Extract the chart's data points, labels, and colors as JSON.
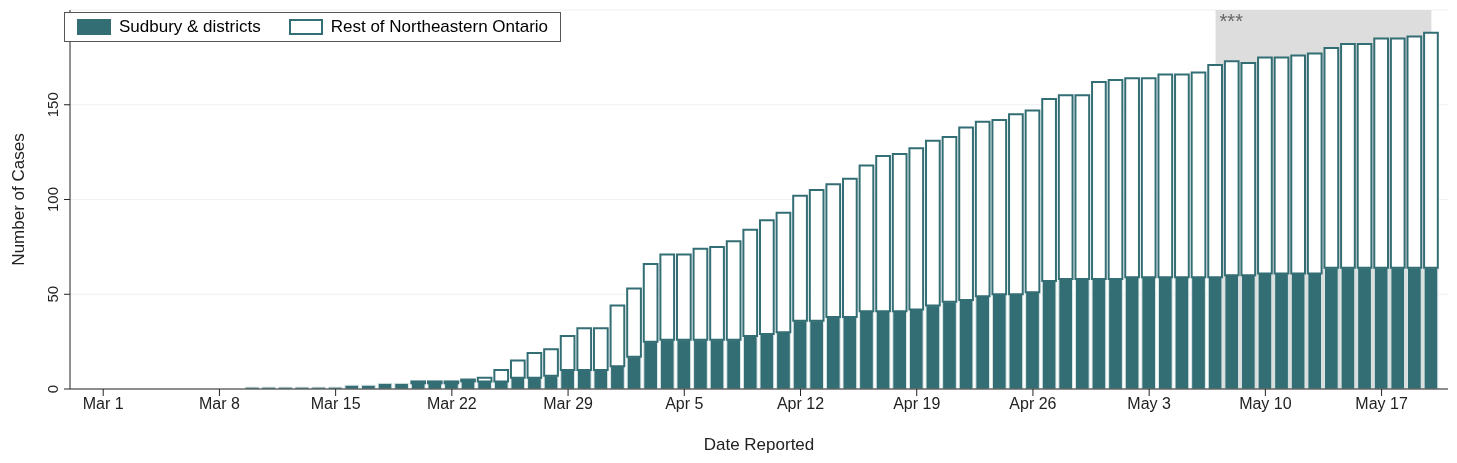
{
  "chart_data": {
    "type": "bar",
    "stacked": true,
    "xlabel": "Date Reported",
    "ylabel": "Number of Cases",
    "x": [
      "--03-10",
      "--03-11",
      "--03-12",
      "--03-13",
      "--03-14",
      "--03-15",
      "--03-16",
      "--03-17",
      "--03-18",
      "--03-19",
      "--03-20",
      "--03-21",
      "--03-22",
      "--03-23",
      "--03-24",
      "--03-25",
      "--03-26",
      "--03-27",
      "--03-28",
      "--03-29",
      "--03-30",
      "--03-31",
      "--04-01",
      "--04-02",
      "--04-03",
      "--04-04",
      "--04-05",
      "--04-06",
      "--04-07",
      "--04-08",
      "--04-09",
      "--04-10",
      "--04-11",
      "--04-12",
      "--04-13",
      "--04-14",
      "--04-15",
      "--04-16",
      "--04-17",
      "--04-18",
      "--04-19",
      "--04-20",
      "--04-21",
      "--04-22",
      "--04-23",
      "--04-24",
      "--04-25",
      "--04-26",
      "--04-27",
      "--04-28",
      "--04-29",
      "--04-30",
      "--05-01",
      "--05-02",
      "--05-03",
      "--05-04",
      "--05-05",
      "--05-06",
      "--05-07",
      "--05-08",
      "--05-09",
      "--05-10",
      "--05-11",
      "--05-12",
      "--05-13",
      "--05-14",
      "--05-15",
      "--05-16",
      "--05-17",
      "--05-18",
      "--05-19",
      "--05-20"
    ],
    "series": [
      {
        "name": "Sudbury & districts",
        "color": "#336e74",
        "values": [
          1,
          1,
          1,
          1,
          1,
          1,
          2,
          2,
          3,
          3,
          3,
          3,
          3,
          4,
          4,
          4,
          6,
          6,
          7,
          10,
          10,
          10,
          12,
          17,
          25,
          26,
          26,
          26,
          26,
          26,
          28,
          29,
          30,
          36,
          36,
          38,
          38,
          41,
          41,
          41,
          42,
          44,
          46,
          47,
          49,
          50,
          50,
          51,
          57,
          58,
          58,
          58,
          58,
          59,
          59,
          59,
          59,
          59,
          59,
          60,
          60,
          61,
          61,
          61,
          61,
          64,
          64,
          64,
          64,
          64,
          64,
          64
        ]
      },
      {
        "name": "Rest of Northeastern Ontario",
        "color": "#ffffff",
        "values": [
          0,
          0,
          0,
          0,
          0,
          0,
          0,
          0,
          0,
          0,
          1,
          1,
          1,
          1,
          2,
          6,
          9,
          13,
          14,
          18,
          22,
          22,
          32,
          36,
          41,
          45,
          45,
          48,
          49,
          52,
          56,
          60,
          63,
          66,
          69,
          70,
          73,
          77,
          82,
          83,
          85,
          87,
          87,
          91,
          92,
          92,
          95,
          96,
          96,
          97,
          97,
          104,
          105,
          105,
          105,
          107,
          107,
          108,
          112,
          113,
          112,
          114,
          114,
          115,
          116,
          116,
          118,
          118,
          121,
          121,
          122,
          124
        ]
      }
    ],
    "xlim": [
      "--02-27",
      "--05-21"
    ],
    "xticks": [
      {
        "value": "--03-01",
        "label": "Mar 1"
      },
      {
        "value": "--03-08",
        "label": "Mar 8"
      },
      {
        "value": "--03-15",
        "label": "Mar 15"
      },
      {
        "value": "--03-22",
        "label": "Mar 22"
      },
      {
        "value": "--03-29",
        "label": "Mar 29"
      },
      {
        "value": "--04-05",
        "label": "Apr 5"
      },
      {
        "value": "--04-12",
        "label": "Apr 12"
      },
      {
        "value": "--04-19",
        "label": "Apr 19"
      },
      {
        "value": "--04-26",
        "label": "Apr 26"
      },
      {
        "value": "--05-03",
        "label": "May 3"
      },
      {
        "value": "--05-10",
        "label": "May 10"
      },
      {
        "value": "--05-17",
        "label": "May 17"
      }
    ],
    "ylim": [
      0,
      200
    ],
    "yticks": [
      0,
      50,
      100,
      150
    ],
    "bands": [
      {
        "axis": "x",
        "from": "--05-07",
        "to": "--05-20",
        "label": "***",
        "color": "#dddddd"
      }
    ],
    "grid": "y",
    "legend": "top left"
  }
}
